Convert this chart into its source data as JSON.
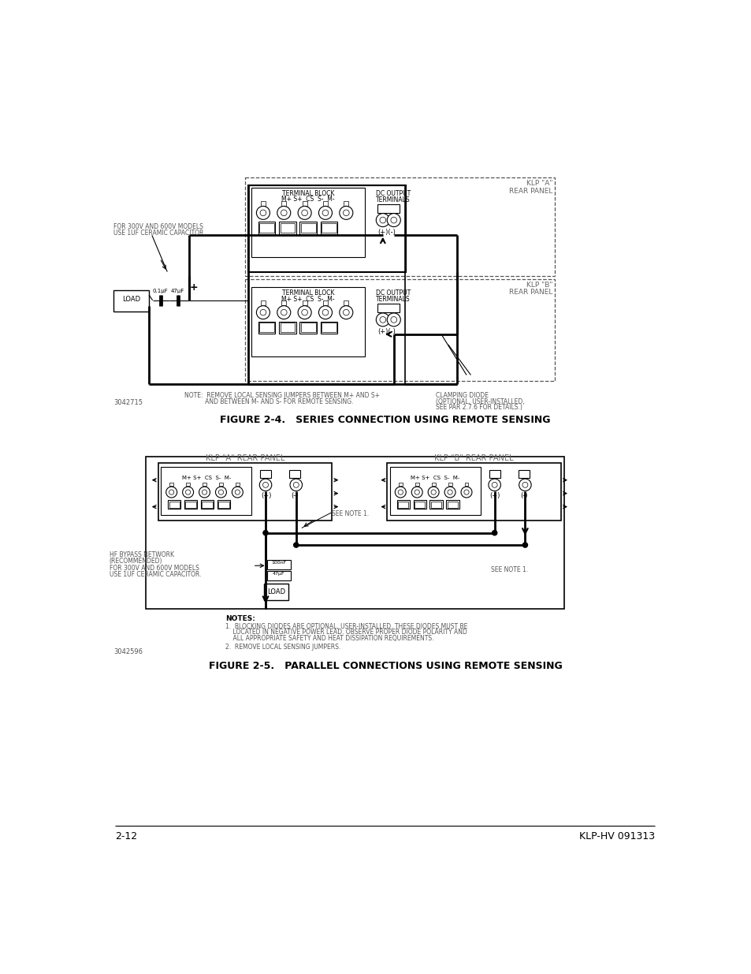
{
  "page_bg": "#ffffff",
  "fig_width": 9.54,
  "fig_height": 12.35,
  "dpi": 100,
  "footer_left": "2-12",
  "footer_right": "KLP-HV 091313",
  "figure1_caption": "FIGURE 2-4.   SERIES CONNECTION USING REMOTE SENSING",
  "figure2_caption": "FIGURE 2-5.   PARALLEL CONNECTIONS USING REMOTE SENSING",
  "figure1_note1": "NOTE:  REMOVE LOCAL SENSING JUMPERS BETWEEN M+ AND S+",
  "figure1_note2": "           AND BETWEEN M- AND S- FOR REMOTE SENSING.",
  "figure1_note_right1": "CLAMPING DIODE",
  "figure1_note_right2": "(OPTIONAL, USER-INSTALLED,",
  "figure1_note_right3": "SEE PAR 2.7.6 FOR DETAILS.)",
  "figure1_part_no": "3042715",
  "figure2_part_no": "3042596",
  "figure2_notes_title": "NOTES:",
  "figure2_note1a": "1.  BLOCKING DIODES ARE OPTIONAL, USER-INSTALLED. THESE DIODES MUST BE",
  "figure2_note1b": "    LOCATED IN NEGATIVE POWER LEAD. OBSERVE PROPER DIODE POLARITY AND",
  "figure2_note1c": "    ALL APPROPRIATE SAFETY AND HEAT DISSIPATION REQUIREMENTS.",
  "figure2_note2": "2.  REMOVE LOCAL SENSING JUMPERS.",
  "line_color": "#000000",
  "gray_text": "#888888",
  "dark_line": 2.0,
  "thin_line": 0.8,
  "dashed_lw": 0.9,
  "f1_note_left1": "FOR 300V AND 600V MODELS",
  "f1_note_left2": "USE 1UF CERAMIC CAPACITOR.",
  "f2_hf_note1": "HF BYPASS NETWORK",
  "f2_hf_note2": "(RECOMMENDED)",
  "f2_hf_note3": "FOR 300V AND 600V MODELS",
  "f2_hf_note4": "USE 1UF CERAMIC CAPACITOR.",
  "f2_see_note": "SEE NOTE 1.",
  "terminal_label_A": "M+ S+  CS  S-  M-",
  "terminal_label_B": "M+ S+  CS  S-  M-",
  "terminal_block_label": "TERMINAL BLOCK",
  "dc_output_label1": "DC OUTPUT",
  "dc_output_label2": "TERMINALS",
  "klp_a_label1": "KLP \"A\"",
  "klp_a_label2": "REAR PANEL",
  "klp_b_label1": "KLP \"B\"",
  "klp_b_label2": "REAR PANEL",
  "load_label": "LOAD",
  "plus_minus_a": "(+)(-)",
  "plus_label": "(+)",
  "minus_label": "(-)"
}
